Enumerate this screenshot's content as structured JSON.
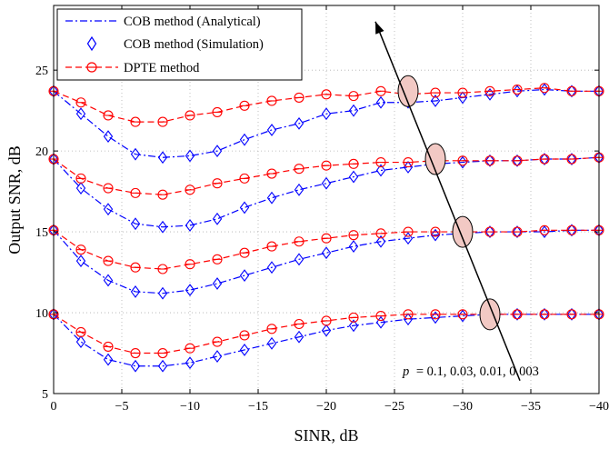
{
  "chart_data": {
    "type": "line",
    "title": "",
    "xlabel": "SINR, dB",
    "ylabel": "Output SNR, dB",
    "xlim": [
      0,
      -40
    ],
    "ylim": [
      5,
      29
    ],
    "xticks": [
      0,
      -5,
      -10,
      -15,
      -20,
      -25,
      -30,
      -35,
      -40
    ],
    "yticks": [
      5,
      10,
      15,
      20,
      25
    ],
    "grid": true,
    "legend_position": "top-left",
    "legend": [
      {
        "key": "cob_analytical",
        "label": "COB method (Analytical)"
      },
      {
        "key": "cob_simulation",
        "label": "COB method (Simulation)"
      },
      {
        "key": "dpte",
        "label": "DPTE method"
      }
    ],
    "x": [
      0,
      -2,
      -4,
      -6,
      -8,
      -10,
      -12,
      -14,
      -16,
      -18,
      -20,
      -22,
      -24,
      -26,
      -28,
      -30,
      -32,
      -34,
      -36,
      -38,
      -40
    ],
    "groups": [
      {
        "p": 0.1,
        "cob": [
          23.7,
          22.3,
          20.9,
          19.8,
          19.6,
          19.7,
          20.0,
          20.7,
          21.3,
          21.7,
          22.3,
          22.5,
          23.0,
          23.0,
          23.1,
          23.3,
          23.5,
          23.7,
          23.8,
          23.7,
          23.7
        ],
        "dpte": [
          23.7,
          23.0,
          22.2,
          21.8,
          21.8,
          22.2,
          22.4,
          22.8,
          23.1,
          23.3,
          23.5,
          23.4,
          23.7,
          23.5,
          23.6,
          23.6,
          23.7,
          23.8,
          23.9,
          23.7,
          23.7
        ]
      },
      {
        "p": 0.03,
        "cob": [
          19.5,
          17.7,
          16.4,
          15.5,
          15.3,
          15.4,
          15.8,
          16.5,
          17.1,
          17.6,
          18.0,
          18.4,
          18.8,
          19.0,
          19.2,
          19.3,
          19.4,
          19.4,
          19.5,
          19.5,
          19.6
        ],
        "dpte": [
          19.5,
          18.3,
          17.7,
          17.4,
          17.3,
          17.6,
          18.0,
          18.3,
          18.6,
          18.9,
          19.1,
          19.2,
          19.3,
          19.3,
          19.4,
          19.4,
          19.4,
          19.4,
          19.5,
          19.5,
          19.6
        ]
      },
      {
        "p": 0.01,
        "cob": [
          15.1,
          13.2,
          12.0,
          11.3,
          11.2,
          11.4,
          11.8,
          12.3,
          12.8,
          13.3,
          13.7,
          14.1,
          14.4,
          14.6,
          14.8,
          14.9,
          15.0,
          15.0,
          15.0,
          15.1,
          15.1
        ],
        "dpte": [
          15.1,
          13.9,
          13.2,
          12.8,
          12.7,
          13.0,
          13.3,
          13.7,
          14.1,
          14.4,
          14.6,
          14.8,
          14.9,
          15.0,
          15.0,
          15.0,
          15.0,
          15.0,
          15.1,
          15.1,
          15.1
        ]
      },
      {
        "p": 0.003,
        "cob": [
          9.9,
          8.2,
          7.1,
          6.7,
          6.7,
          6.9,
          7.3,
          7.7,
          8.1,
          8.5,
          8.9,
          9.2,
          9.4,
          9.6,
          9.7,
          9.8,
          9.9,
          9.9,
          9.9,
          9.9,
          9.9
        ],
        "dpte": [
          9.9,
          8.8,
          7.9,
          7.5,
          7.5,
          7.8,
          8.2,
          8.6,
          9.0,
          9.3,
          9.5,
          9.7,
          9.8,
          9.9,
          9.9,
          9.9,
          9.9,
          9.9,
          9.9,
          9.9,
          9.9
        ]
      }
    ],
    "annotation": {
      "text": "p = 0.1, 0.03, 0.01, 0.003",
      "p_symbol": "p",
      "p_values": "= 0.1, 0.03, 0.01, 0.003",
      "ellipses": [
        {
          "x": -26,
          "y": 23.7
        },
        {
          "x": -28,
          "y": 19.5
        },
        {
          "x": -30,
          "y": 15.0
        },
        {
          "x": -32,
          "y": 9.9
        }
      ],
      "arrow_from": {
        "x": -34.2,
        "y": 5.8
      },
      "arrow_to": {
        "x": -23.6,
        "y": 28.0
      }
    },
    "colors": {
      "cob": "#0000ff",
      "dpte": "#ff0000",
      "ellipse_fill": "#f2c9c4",
      "grid": "#b0b0b0"
    }
  }
}
